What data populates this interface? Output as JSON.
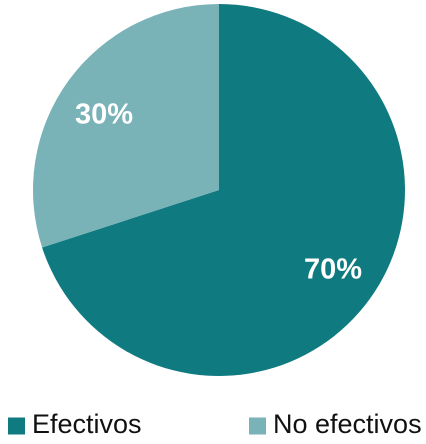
{
  "chart_data": {
    "type": "pie",
    "title": "",
    "legend_position": "bottom",
    "slices": [
      {
        "label": "Efectivos",
        "value": 70,
        "value_label": "70%",
        "color": "#0f7a80"
      },
      {
        "label": "No efectivos",
        "value": 30,
        "value_label": "30%",
        "color": "#79b2b7"
      }
    ]
  }
}
